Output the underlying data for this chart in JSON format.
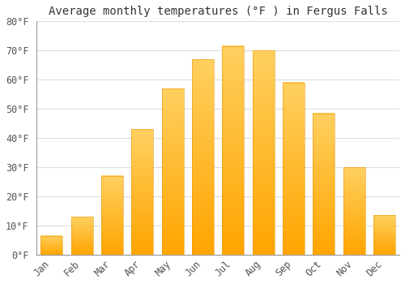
{
  "title": "Average monthly temperatures (°F ) in Fergus Falls",
  "months": [
    "Jan",
    "Feb",
    "Mar",
    "Apr",
    "May",
    "Jun",
    "Jul",
    "Aug",
    "Sep",
    "Oct",
    "Nov",
    "Dec"
  ],
  "values": [
    6.5,
    13,
    27,
    43,
    57,
    67,
    71.5,
    70,
    59,
    48.5,
    30,
    13.5
  ],
  "bar_color_bottom": "#FFA500",
  "bar_color_top": "#FFD060",
  "ylim": [
    0,
    80
  ],
  "yticks": [
    0,
    10,
    20,
    30,
    40,
    50,
    60,
    70,
    80
  ],
  "ytick_labels": [
    "0°F",
    "10°F",
    "20°F",
    "30°F",
    "40°F",
    "50°F",
    "60°F",
    "70°F",
    "80°F"
  ],
  "background_color": "#FFFFFF",
  "grid_color": "#DDDDDD",
  "title_fontsize": 10,
  "tick_fontsize": 8.5,
  "font_family": "monospace",
  "bar_width": 0.72
}
